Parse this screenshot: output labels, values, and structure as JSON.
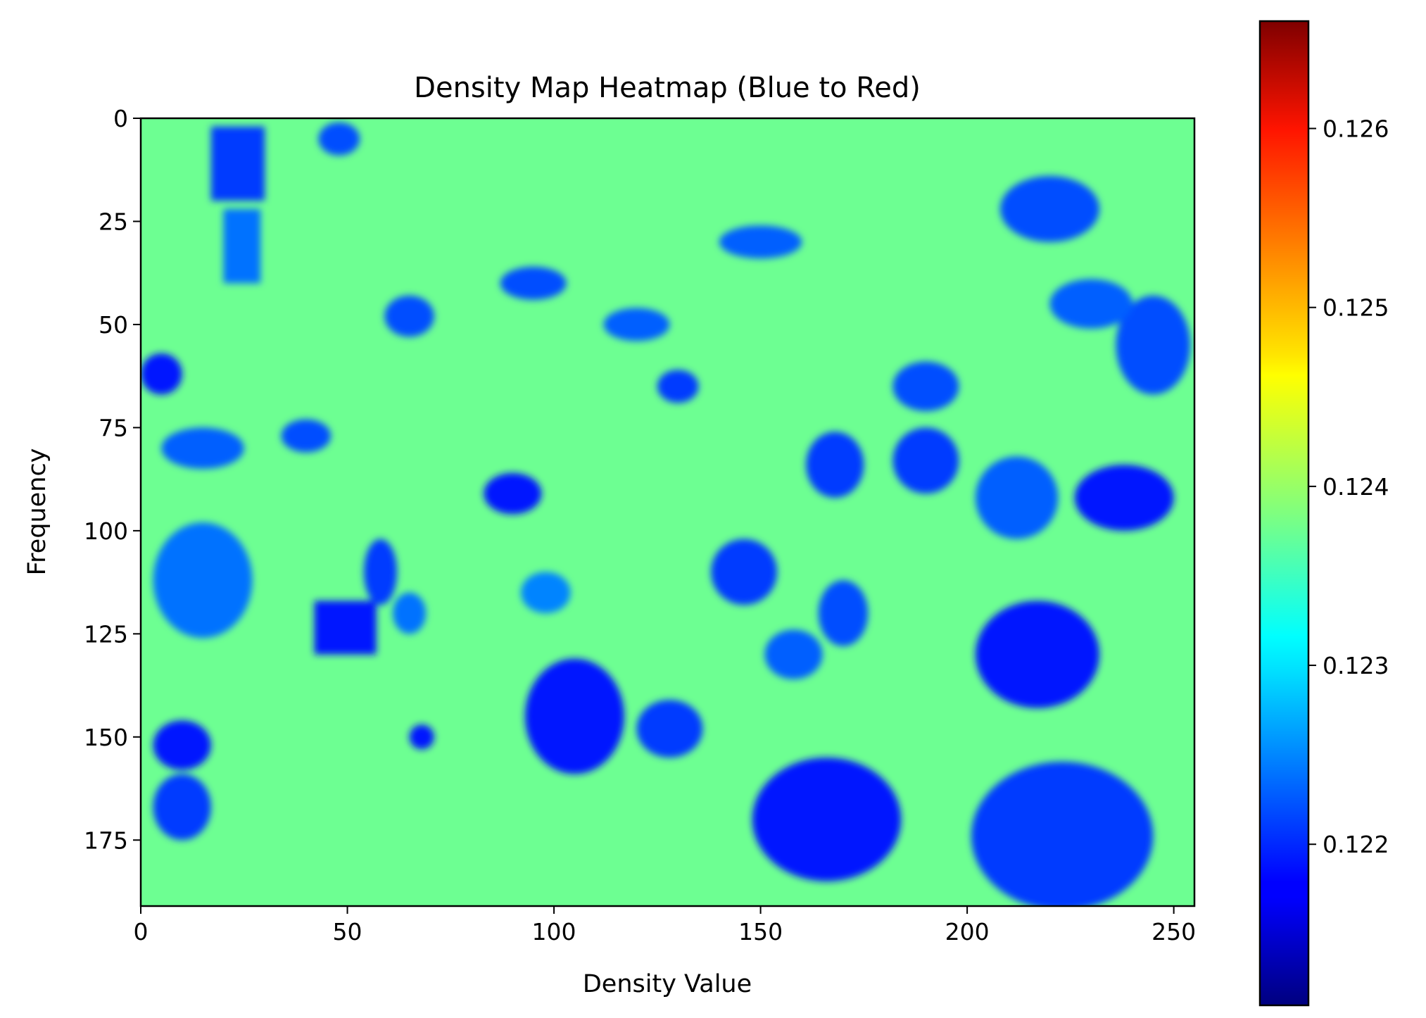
{
  "chart_data": {
    "type": "heatmap",
    "title": "Density Map Heatmap (Blue to Red)",
    "xlabel": "Density Value",
    "ylabel": "Frequency",
    "xlim": [
      0,
      255
    ],
    "ylim": [
      191,
      0
    ],
    "x_ticks": [
      0,
      50,
      100,
      150,
      200,
      250
    ],
    "y_ticks": [
      0,
      25,
      50,
      75,
      100,
      125,
      150,
      175
    ],
    "colormap": "jet",
    "colorbar": {
      "range": [
        0.1211,
        0.1266
      ],
      "ticks": [
        0.122,
        0.123,
        0.124,
        0.125,
        0.126
      ],
      "tick_labels": [
        "0.122",
        "0.123",
        "0.124",
        "0.125",
        "0.126"
      ]
    },
    "grid": false,
    "background_level": 0.12375,
    "regions": [
      {
        "kind": "ellipse",
        "cx": 166,
        "cy": 170,
        "rx": 18,
        "ry": 15,
        "value": 0.1219
      },
      {
        "kind": "ellipse",
        "cx": 217,
        "cy": 130,
        "rx": 15,
        "ry": 13,
        "value": 0.1219
      },
      {
        "kind": "ellipse",
        "cx": 223,
        "cy": 174,
        "rx": 22,
        "ry": 18,
        "value": 0.1221
      },
      {
        "kind": "ellipse",
        "cx": 238,
        "cy": 92,
        "rx": 12,
        "ry": 8,
        "value": 0.1219
      },
      {
        "kind": "ellipse",
        "cx": 245,
        "cy": 55,
        "rx": 9,
        "ry": 12,
        "value": 0.1222
      },
      {
        "kind": "ellipse",
        "cx": 212,
        "cy": 92,
        "rx": 10,
        "ry": 10,
        "value": 0.1223
      },
      {
        "kind": "ellipse",
        "cx": 105,
        "cy": 145,
        "rx": 12,
        "ry": 14,
        "value": 0.1219
      },
      {
        "kind": "ellipse",
        "cx": 128,
        "cy": 148,
        "rx": 8,
        "ry": 7,
        "value": 0.1221
      },
      {
        "kind": "ellipse",
        "cx": 10,
        "cy": 152,
        "rx": 7,
        "ry": 6,
        "value": 0.1219
      },
      {
        "kind": "ellipse",
        "cx": 10,
        "cy": 167,
        "rx": 7,
        "ry": 8,
        "value": 0.1221
      },
      {
        "kind": "ellipse",
        "cx": 5,
        "cy": 62,
        "rx": 5,
        "ry": 5,
        "value": 0.1219
      },
      {
        "kind": "ellipse",
        "cx": 15,
        "cy": 112,
        "rx": 12,
        "ry": 14,
        "value": 0.1224
      },
      {
        "kind": "ellipse",
        "cx": 90,
        "cy": 91,
        "rx": 7,
        "ry": 5,
        "value": 0.1219
      },
      {
        "kind": "ellipse",
        "cx": 146,
        "cy": 110,
        "rx": 8,
        "ry": 8,
        "value": 0.1221
      },
      {
        "kind": "ellipse",
        "cx": 170,
        "cy": 120,
        "rx": 6,
        "ry": 8,
        "value": 0.1222
      },
      {
        "kind": "ellipse",
        "cx": 168,
        "cy": 84,
        "rx": 7,
        "ry": 8,
        "value": 0.1221
      },
      {
        "kind": "ellipse",
        "cx": 190,
        "cy": 83,
        "rx": 8,
        "ry": 8,
        "value": 0.1221
      },
      {
        "kind": "ellipse",
        "cx": 190,
        "cy": 65,
        "rx": 8,
        "ry": 6,
        "value": 0.1222
      },
      {
        "kind": "ellipse",
        "cx": 158,
        "cy": 130,
        "rx": 7,
        "ry": 6,
        "value": 0.1223
      },
      {
        "kind": "ellipse",
        "cx": 58,
        "cy": 110,
        "rx": 4,
        "ry": 8,
        "value": 0.1221
      },
      {
        "kind": "ellipse",
        "cx": 68,
        "cy": 150,
        "rx": 3,
        "ry": 3,
        "value": 0.1219
      },
      {
        "kind": "ellipse",
        "cx": 130,
        "cy": 65,
        "rx": 5,
        "ry": 4,
        "value": 0.1221
      },
      {
        "kind": "ellipse",
        "cx": 40,
        "cy": 77,
        "rx": 6,
        "ry": 4,
        "value": 0.1222
      },
      {
        "kind": "ellipse",
        "cx": 15,
        "cy": 80,
        "rx": 10,
        "ry": 5,
        "value": 0.1223
      },
      {
        "kind": "ellipse",
        "cx": 220,
        "cy": 22,
        "rx": 12,
        "ry": 8,
        "value": 0.1222
      },
      {
        "kind": "ellipse",
        "cx": 230,
        "cy": 45,
        "rx": 10,
        "ry": 6,
        "value": 0.1223
      },
      {
        "kind": "ellipse",
        "cx": 65,
        "cy": 48,
        "rx": 6,
        "ry": 5,
        "value": 0.1222
      },
      {
        "kind": "ellipse",
        "cx": 95,
        "cy": 40,
        "rx": 8,
        "ry": 4,
        "value": 0.1222
      },
      {
        "kind": "ellipse",
        "cx": 120,
        "cy": 50,
        "rx": 8,
        "ry": 4,
        "value": 0.1223
      },
      {
        "kind": "ellipse",
        "cx": 150,
        "cy": 30,
        "rx": 10,
        "ry": 4,
        "value": 0.1223
      },
      {
        "kind": "ellipse",
        "cx": 48,
        "cy": 5,
        "rx": 5,
        "ry": 4,
        "value": 0.1222
      },
      {
        "kind": "ellipse",
        "cx": 65,
        "cy": 120,
        "rx": 4,
        "ry": 5,
        "value": 0.1224
      },
      {
        "kind": "ellipse",
        "cx": 98,
        "cy": 115,
        "rx": 6,
        "ry": 5,
        "value": 0.1225
      },
      {
        "kind": "rect",
        "x0": 42,
        "y0": 117,
        "x1": 57,
        "y1": 130,
        "value": 0.1219
      },
      {
        "kind": "rect",
        "x0": 17,
        "y0": 2,
        "x1": 30,
        "y1": 20,
        "value": 0.1221
      },
      {
        "kind": "rect",
        "x0": 20,
        "y0": 22,
        "x1": 29,
        "y1": 40,
        "value": 0.1224
      }
    ]
  }
}
